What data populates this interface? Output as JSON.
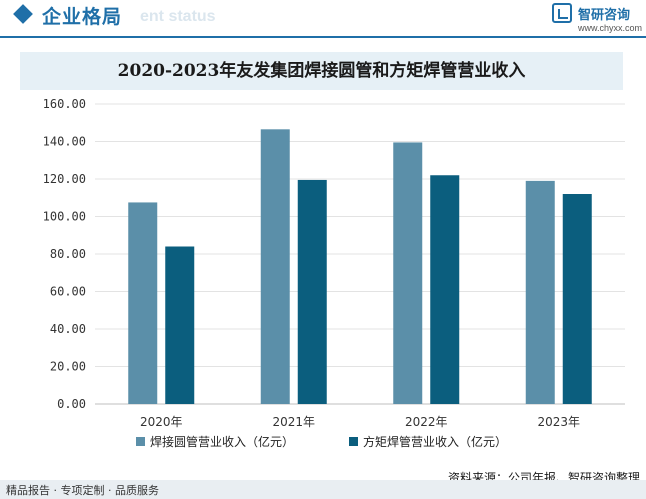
{
  "header": {
    "title": "企业格局",
    "subtitle_en": "ent status",
    "brand_name": "智研咨询",
    "brand_url": "www.chyxx.com"
  },
  "chart_data": {
    "type": "bar",
    "title": "2020-2023年友发集团焊接圆管和方矩焊管营业收入",
    "categories": [
      "2020年",
      "2021年",
      "2022年",
      "2023年"
    ],
    "series": [
      {
        "name": "焊接圆管营业收入（亿元）",
        "color": "#5b8fa9",
        "values": [
          107.5,
          146.5,
          139.5,
          119.0
        ]
      },
      {
        "name": "方矩焊管营业收入（亿元）",
        "color": "#0b5e7e",
        "values": [
          84.0,
          119.5,
          122.0,
          112.0
        ]
      }
    ],
    "ylim": [
      0,
      160
    ],
    "yticks": [
      "0.00",
      "20.00",
      "40.00",
      "60.00",
      "80.00",
      "100.00",
      "120.00",
      "140.00",
      "160.00"
    ],
    "grid": true,
    "legend_position": "bottom"
  },
  "source": "资料来源：公司年报、智研咨询整理",
  "footer": "精品报告 · 专项定制 · 品质服务"
}
